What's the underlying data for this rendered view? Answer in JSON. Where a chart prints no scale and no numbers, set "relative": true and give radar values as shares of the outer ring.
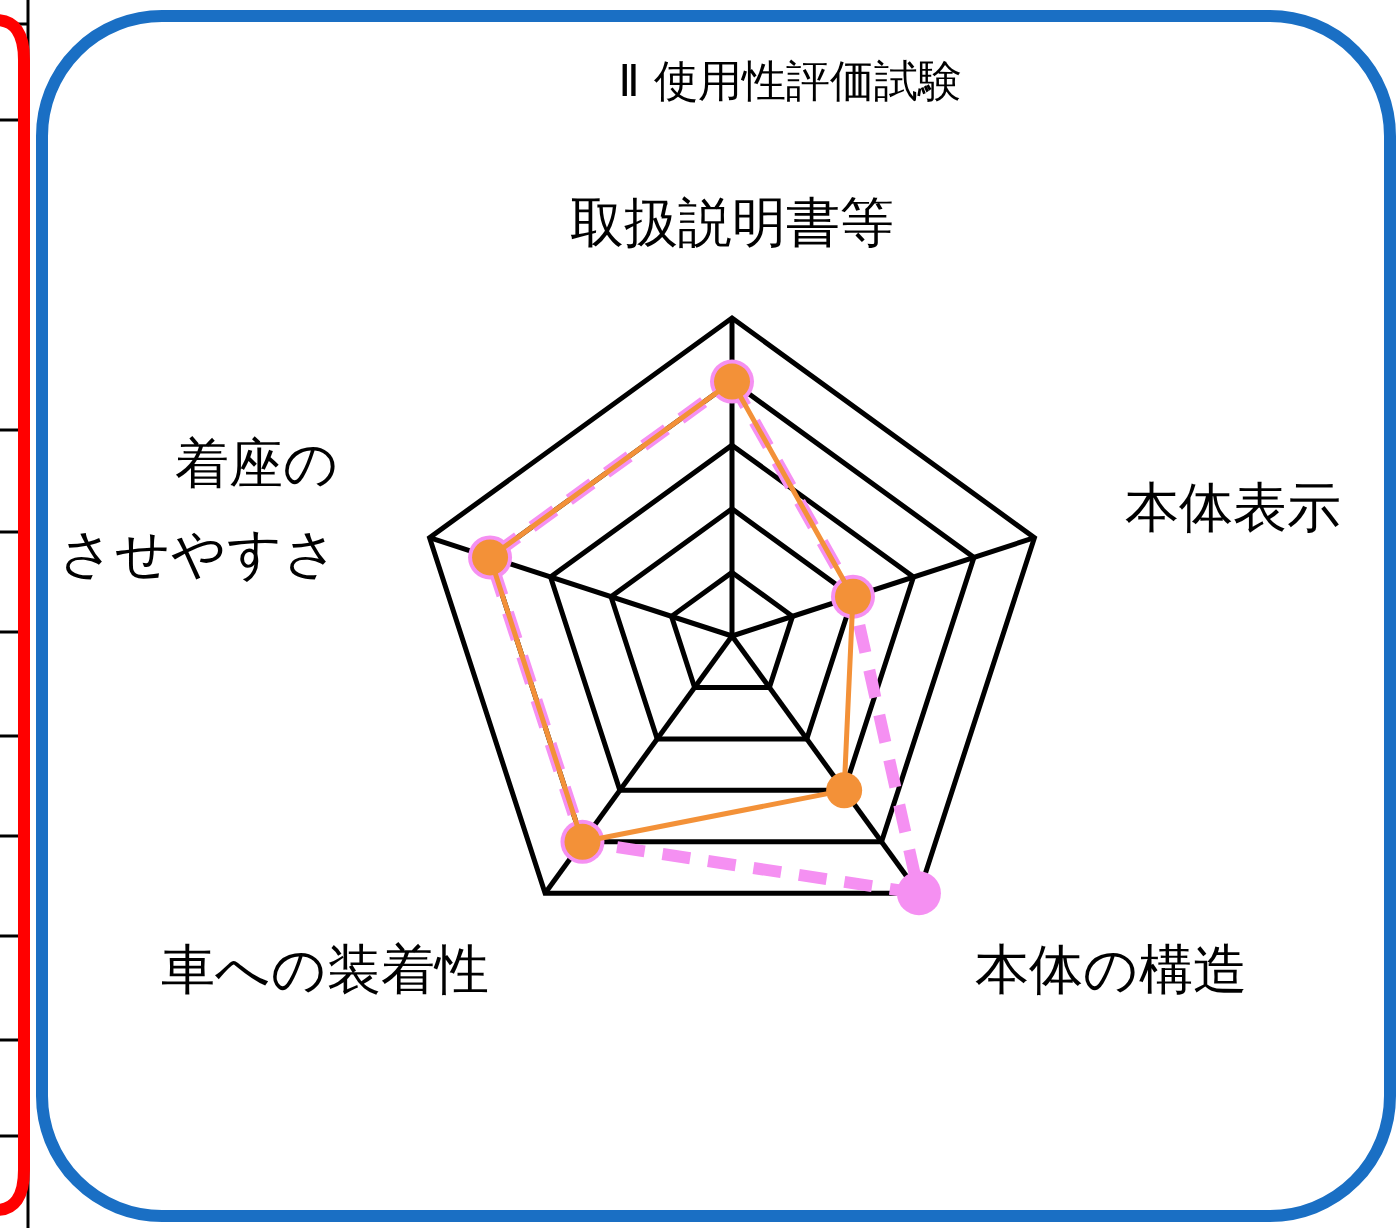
{
  "chart_data": {
    "type": "radar",
    "title": "Ⅱ 使用性評価試験",
    "relative": true,
    "grid": true,
    "marker": "circle",
    "categories": [
      "取扱説明書等",
      "本体表示",
      "本体の構造",
      "車への装着性",
      "着座のさせやすさ"
    ],
    "series": [
      {
        "color": "#f590f2",
        "line_style": "dashed",
        "values": [
          0.8,
          0.4,
          1,
          0.8,
          0.8
        ]
      },
      {
        "color": "#f39138",
        "line_style": "solid",
        "values": [
          0.8,
          0.4,
          0.6,
          0.8,
          0.8
        ]
      }
    ]
  }
}
